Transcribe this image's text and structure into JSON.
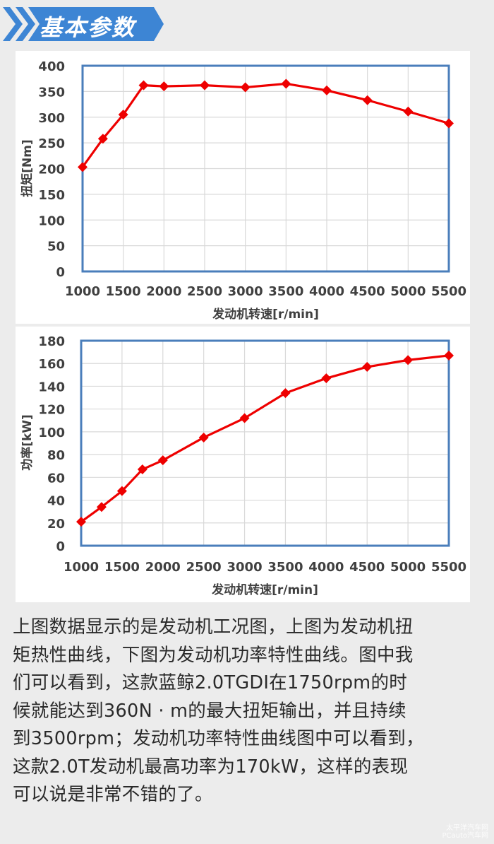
{
  "section_title": "基本参数",
  "colors": {
    "banner_blue": "#3d85d4",
    "plot_border": "#4a7ebb",
    "series_red": "#ee0000",
    "grid": "#d9d9d9",
    "tick_text": "#404040"
  },
  "chart_data": [
    {
      "type": "line",
      "title": "",
      "xlabel": "发动机转速[r/min]",
      "ylabel": "扭矩[Nm]",
      "xlim": [
        1000,
        5500
      ],
      "ylim": [
        0,
        400
      ],
      "x_ticks": [
        1000,
        1500,
        2000,
        2500,
        3000,
        3500,
        4000,
        4500,
        5000,
        5500
      ],
      "y_ticks": [
        0,
        50,
        100,
        150,
        200,
        250,
        300,
        350,
        400
      ],
      "grid": true,
      "legend": null,
      "marker": "diamond",
      "x": [
        1000,
        1250,
        1500,
        1750,
        2000,
        2500,
        3000,
        3500,
        4000,
        4500,
        5000,
        5500
      ],
      "series": [
        {
          "name": "扭矩",
          "values": [
            203,
            258,
            305,
            362,
            360,
            362,
            358,
            365,
            352,
            333,
            311,
            288
          ]
        }
      ]
    },
    {
      "type": "line",
      "title": "",
      "xlabel": "发动机转速[r/min]",
      "ylabel": "功率[kW]",
      "xlim": [
        1000,
        5500
      ],
      "ylim": [
        0,
        180
      ],
      "x_ticks": [
        1000,
        1500,
        2000,
        2500,
        3000,
        3500,
        4000,
        4500,
        5000,
        5500
      ],
      "y_ticks": [
        0,
        20,
        40,
        60,
        80,
        100,
        120,
        140,
        160,
        180
      ],
      "grid": true,
      "legend": null,
      "marker": "diamond",
      "x": [
        1000,
        1250,
        1500,
        1750,
        2000,
        2500,
        3000,
        3500,
        4000,
        4500,
        5000,
        5500
      ],
      "series": [
        {
          "name": "功率",
          "values": [
            21,
            34,
            48,
            67,
            75,
            95,
            112,
            134,
            147,
            157,
            163,
            167
          ]
        }
      ]
    }
  ],
  "description_lines": [
    "上图数据显示的是发动机工况图，上图为发动机扭",
    "矩热性曲线，下图为发动机功率特性曲线。图中我",
    "们可以看到，这款蓝鲸2.0TGDI在1750rpm的时",
    "候就能达到360N · m的最大扭矩输出，并且持续",
    "到3500rpm；发动机功率特性曲线图中可以看到，",
    "这款2.0T发动机最高功率为170kW，这样的表现",
    "可以说是非常不错的了。"
  ],
  "watermark": {
    "line1": "太平洋汽车网",
    "line2": "PCauto汽车网"
  }
}
